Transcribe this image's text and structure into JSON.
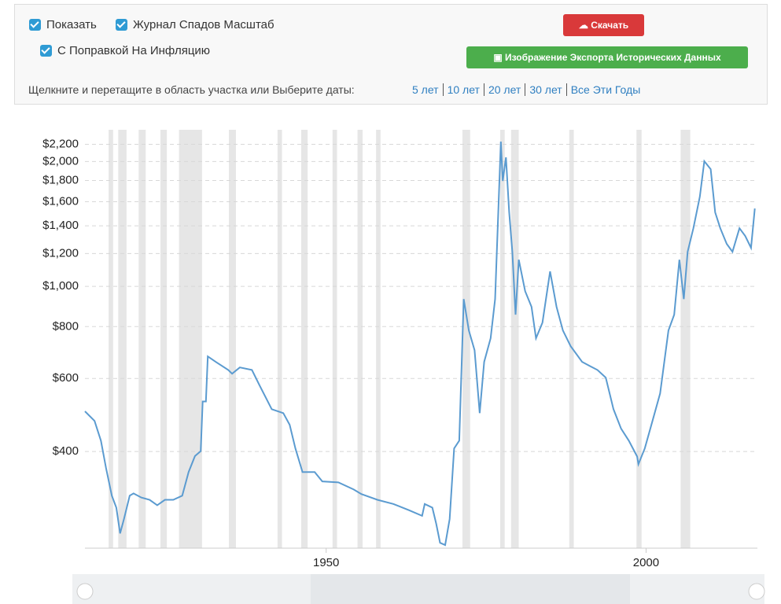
{
  "controls": {
    "checkboxes": [
      "Показать",
      "Журнал Спадов Масштаб",
      "С Поправкой На Инфляцию"
    ],
    "download": "Скачать",
    "export": "Изображение Экспорта Исторических Данных",
    "hint": "Щелкните и перетащите в область участка или Выберите даты:",
    "ranges": [
      "5 лет",
      "10 лет",
      "20 лет",
      "30 лет",
      "Все Эти Годы"
    ]
  },
  "chart_data": {
    "type": "line",
    "yscale": "log",
    "color": "#5b9bd0",
    "grid": true,
    "xlim": [
      1912.3,
      2017.4
    ],
    "ylim": [
      234,
      2385
    ],
    "xticks": [
      1950,
      2000
    ],
    "yticks": [
      {
        "value": 400,
        "label": "$400"
      },
      {
        "value": 600,
        "label": "$600"
      },
      {
        "value": 800,
        "label": "$800"
      },
      {
        "value": 1000,
        "label": "$1,000"
      },
      {
        "value": 1200,
        "label": "$1,200"
      },
      {
        "value": 1400,
        "label": "$1,400"
      },
      {
        "value": 1600,
        "label": "$1,600"
      },
      {
        "value": 1800,
        "label": "$1,800"
      },
      {
        "value": 2000,
        "label": "$2,000"
      },
      {
        "value": 2200,
        "label": "$2,200"
      }
    ],
    "recessions": [
      [
        1916.0,
        1916.7
      ],
      [
        1917.5,
        1918.8
      ],
      [
        1920.7,
        1921.8
      ],
      [
        1924.1,
        1925.1
      ],
      [
        1927.0,
        1930.6
      ],
      [
        1934.8,
        1935.9
      ],
      [
        1942.4,
        1943.1
      ],
      [
        1946.1,
        1947.1
      ],
      [
        1951.0,
        1951.7
      ],
      [
        1954.9,
        1955.7
      ],
      [
        1957.8,
        1958.5
      ],
      [
        1971.3,
        1972.5
      ],
      [
        1977.2,
        1977.9
      ],
      [
        1978.9,
        1980.1
      ],
      [
        1988.0,
        1988.7
      ],
      [
        1998.5,
        1999.3
      ],
      [
        2005.4,
        2006.9
      ]
    ],
    "x": [
      1912.3,
      1913.8,
      1914.8,
      1915.6,
      1916.5,
      1917.2,
      1917.8,
      1918.4,
      1919.3,
      1919.9,
      1921.1,
      1922.4,
      1923.6,
      1924.8,
      1926.1,
      1927.5,
      1928.5,
      1929.5,
      1930.4,
      1930.7,
      1931.2,
      1931.5,
      1932.8,
      1934.7,
      1935.3,
      1936.5,
      1938.4,
      1939.6,
      1941.5,
      1943.3,
      1944.3,
      1945.2,
      1946.3,
      1948.2,
      1949.4,
      1951.9,
      1954.3,
      1955.5,
      1958.0,
      1960.5,
      1962.9,
      1965.0,
      1965.4,
      1966.6,
      1967.2,
      1967.8,
      1968.6,
      1969.3,
      1970.0,
      1970.8,
      1971.5,
      1972.3,
      1973.2,
      1974.0,
      1974.7,
      1975.7,
      1976.4,
      1977.3,
      1977.6,
      1978.1,
      1978.6,
      1979.1,
      1979.6,
      1980.1,
      1981.1,
      1982.1,
      1982.8,
      1983.8,
      1985.0,
      1986.0,
      1987.0,
      1988.2,
      1990.0,
      1991.2,
      1992.4,
      1993.7,
      1994.9,
      1996.1,
      1997.3,
      1998.6,
      1998.8,
      1999.8,
      2001.0,
      2002.2,
      2003.5,
      2004.4,
      2005.2,
      2005.9,
      2006.5,
      2007.4,
      2008.4,
      2009.1,
      2010.1,
      2010.8,
      2011.6,
      2012.6,
      2013.5,
      2014.6,
      2015.5,
      2016.4,
      2017.0
    ],
    "values": [
      500,
      474,
      425,
      365,
      313,
      293,
      254,
      275,
      313,
      317,
      310,
      306,
      297,
      306,
      306,
      313,
      357,
      390,
      401,
      528,
      528,
      678,
      657,
      629,
      616,
      638,
      629,
      577,
      506,
      495,
      464,
      407,
      357,
      357,
      339,
      337,
      324,
      316,
      306,
      299,
      289,
      280,
      299,
      293,
      268,
      241,
      238,
      275,
      407,
      425,
      932,
      783,
      702,
      495,
      658,
      750,
      932,
      2234,
      1795,
      2046,
      1508,
      1212,
      855,
      1160,
      974,
      893,
      750,
      818,
      1087,
      893,
      783,
      718,
      658,
      643,
      629,
      603,
      506,
      454,
      425,
      389,
      373,
      407,
      474,
      552,
      783,
      855,
      1160,
      932,
      1212,
      1381,
      1645,
      2003,
      1917,
      1508,
      1381,
      1266,
      1212,
      1381,
      1323,
      1239,
      1541
    ]
  }
}
